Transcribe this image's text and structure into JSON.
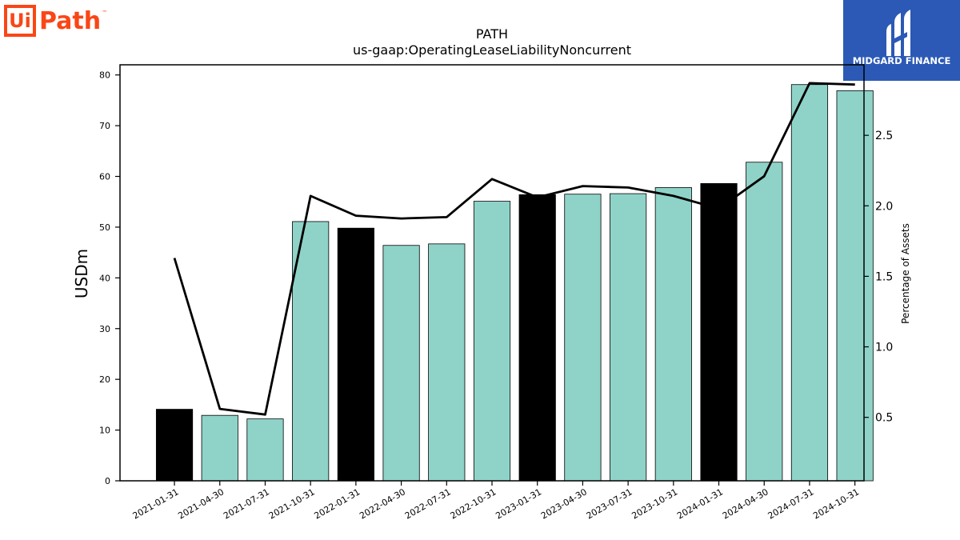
{
  "logos": {
    "left_ui": "Ui",
    "left_path": "Path",
    "left_tm": "™",
    "right_text": "MIDGARD FINANCE"
  },
  "colors": {
    "bar_default": "#8fd3c8",
    "bar_highlight": "#000000",
    "line": "#000000"
  },
  "chart_data": {
    "type": "bar",
    "title": "PATH",
    "subtitle": "us-gaap:OperatingLeaseLiabilityNoncurrent",
    "ylabel": "USDm",
    "y2label": "Percentage of Assets",
    "ylim": [
      0,
      82
    ],
    "y2lim": [
      0.05,
      3.0
    ],
    "yticks": [
      "0",
      "10",
      "20",
      "30",
      "40",
      "50",
      "60",
      "70",
      "80"
    ],
    "y2ticks": [
      "0.5",
      "1.0",
      "1.5",
      "2.0",
      "2.5"
    ],
    "categories": [
      "2021-01-31",
      "2021-04-30",
      "2021-07-31",
      "2021-10-31",
      "2022-01-31",
      "2022-04-30",
      "2022-07-31",
      "2022-10-31",
      "2023-01-31",
      "2023-04-30",
      "2023-07-31",
      "2023-10-31",
      "2024-01-31",
      "2024-04-30",
      "2024-07-31",
      "2024-10-31"
    ],
    "series": [
      {
        "type": "bar",
        "values": [
          14.1,
          12.9,
          12.2,
          51.1,
          49.8,
          46.4,
          46.7,
          55.1,
          56.4,
          56.5,
          56.6,
          57.8,
          58.6,
          62.8,
          78.1,
          76.9
        ],
        "highlight": [
          true,
          false,
          false,
          false,
          true,
          false,
          false,
          false,
          true,
          false,
          false,
          false,
          true,
          false,
          false,
          false
        ]
      },
      {
        "type": "line",
        "axis": "right",
        "values": [
          1.63,
          0.56,
          0.52,
          2.07,
          1.93,
          1.91,
          1.92,
          2.19,
          2.06,
          2.14,
          2.13,
          2.07,
          1.98,
          2.21,
          2.87,
          2.86
        ]
      }
    ],
    "legend": "none",
    "grid": false
  }
}
